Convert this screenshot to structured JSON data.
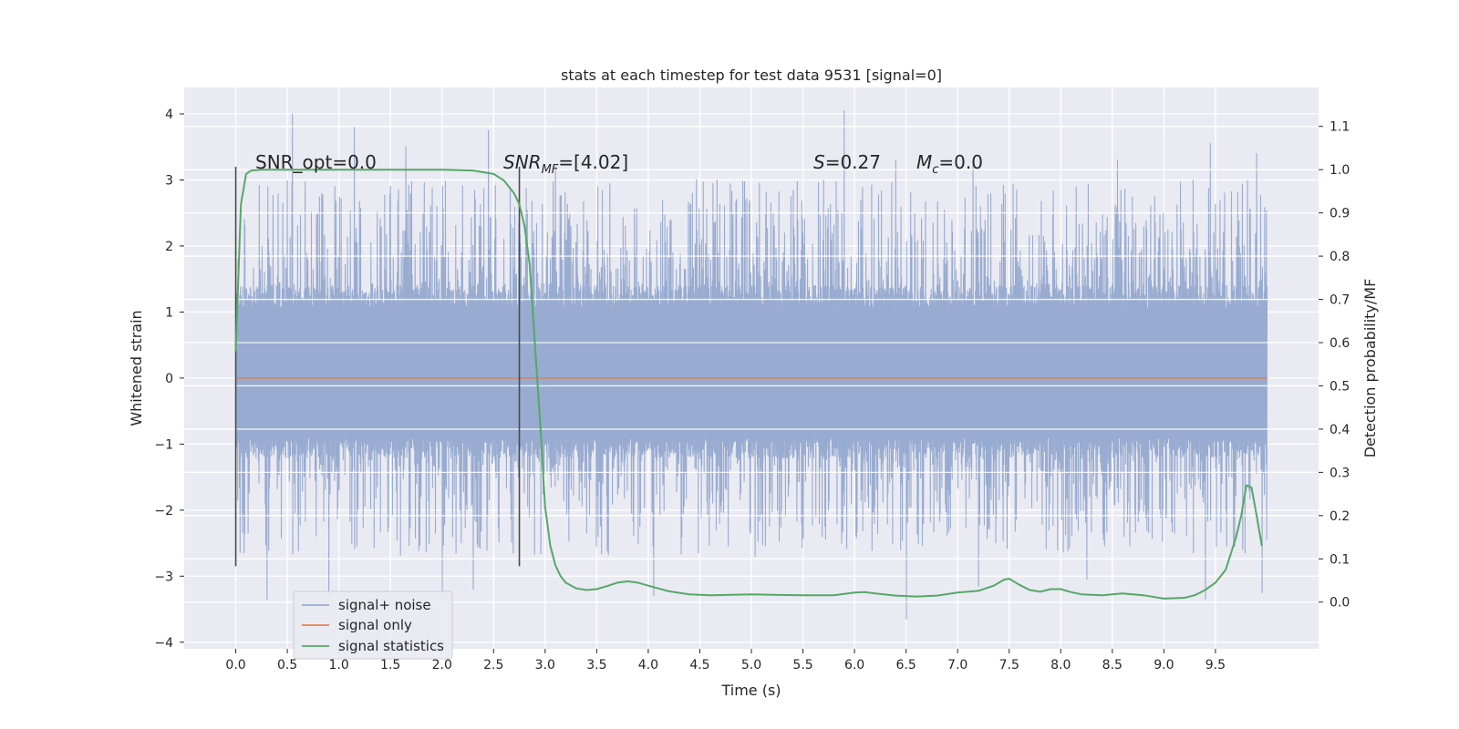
{
  "chart_data": {
    "type": "line",
    "title": "stats at each timestep for test data 9531 [signal=0]",
    "xlabel": "Time (s)",
    "ylabel": "Whitened strain",
    "y2label": "Detection probability/MF",
    "xlim": [
      -0.5,
      10.5
    ],
    "ylim": [
      -4.1,
      4.4
    ],
    "y2lim": [
      -0.108,
      1.19
    ],
    "x_ticks": [
      "0.0",
      "0.5",
      "1.0",
      "1.5",
      "2.0",
      "2.5",
      "3.0",
      "3.5",
      "4.0",
      "4.5",
      "5.0",
      "5.5",
      "6.0",
      "6.5",
      "7.0",
      "7.5",
      "8.0",
      "8.5",
      "9.0",
      "9.5"
    ],
    "y_ticks": [
      "4",
      "3",
      "2",
      "1",
      "0",
      "−1",
      "−2",
      "−3",
      "−4"
    ],
    "y2_ticks": [
      "1.1",
      "1.0",
      "0.9",
      "0.8",
      "0.7",
      "0.6",
      "0.5",
      "0.4",
      "0.3",
      "0.2",
      "0.1",
      "0.0"
    ],
    "grid": true,
    "legend_position": "lower-left",
    "annotations": {
      "snr_opt": "SNR_opt=0.0",
      "snr_mf_sym": "SNR",
      "snr_mf_sub": "MF",
      "snr_mf_val": "=[4.02]",
      "s_sym": "S",
      "s_val": "=0.27",
      "mc_sym": "M",
      "mc_sub": "c",
      "mc_val": "=0.0"
    },
    "vlines": [
      {
        "x": 0.0,
        "ymin": -2.85,
        "ymax": 3.2
      },
      {
        "x": 2.75,
        "ymin": -2.85,
        "ymax": 3.2
      }
    ],
    "series": [
      {
        "name": "signal+ noise",
        "color": "#98abd0",
        "axis": "left",
        "x_start": 0.0,
        "x_end": 10.0,
        "envelope": {
          "inner_min": -1.2,
          "inner_max": 1.4,
          "outer_min": -3.65,
          "outer_max": 4.05
        },
        "peaks": [
          [
            0.0,
            2.45
          ],
          [
            0.55,
            4.0
          ],
          [
            1.15,
            3.8
          ],
          [
            1.65,
            3.5
          ],
          [
            2.45,
            3.75
          ],
          [
            3.1,
            3.2
          ],
          [
            5.9,
            4.05
          ],
          [
            6.4,
            3.3
          ],
          [
            7.15,
            3.3
          ],
          [
            8.55,
            3.3
          ],
          [
            9.45,
            3.55
          ],
          [
            9.9,
            3.4
          ]
        ],
        "troughs": [
          [
            0.3,
            -3.35
          ],
          [
            0.9,
            -3.3
          ],
          [
            2.0,
            -3.35
          ],
          [
            2.3,
            -3.2
          ],
          [
            4.05,
            -3.3
          ],
          [
            6.5,
            -3.65
          ],
          [
            7.2,
            -3.15
          ],
          [
            8.25,
            -3.05
          ],
          [
            9.4,
            -3.35
          ],
          [
            9.95,
            -3.25
          ]
        ]
      },
      {
        "name": "signal only",
        "color": "#dd8452",
        "axis": "left",
        "x": [
          0.0,
          10.0
        ],
        "y": [
          0.0,
          0.0
        ]
      },
      {
        "name": "signal statistics",
        "color": "#55a868",
        "axis": "right",
        "x": [
          0.0,
          0.05,
          0.1,
          0.15,
          0.25,
          0.5,
          1.0,
          1.5,
          2.0,
          2.3,
          2.5,
          2.6,
          2.7,
          2.75,
          2.8,
          2.85,
          2.9,
          2.95,
          3.0,
          3.05,
          3.1,
          3.15,
          3.2,
          3.3,
          3.4,
          3.5,
          3.6,
          3.7,
          3.8,
          3.9,
          4.0,
          4.2,
          4.4,
          4.6,
          4.8,
          5.0,
          5.2,
          5.5,
          5.8,
          6.0,
          6.1,
          6.2,
          6.4,
          6.6,
          6.8,
          7.0,
          7.2,
          7.35,
          7.45,
          7.5,
          7.6,
          7.7,
          7.8,
          7.9,
          8.0,
          8.1,
          8.2,
          8.4,
          8.6,
          8.8,
          9.0,
          9.2,
          9.3,
          9.4,
          9.5,
          9.6,
          9.7,
          9.75,
          9.8,
          9.85,
          9.9,
          9.95
        ],
        "y": [
          0.58,
          0.92,
          0.99,
          0.998,
          1.0,
          1.0,
          1.0,
          1.0,
          1.0,
          0.998,
          0.99,
          0.975,
          0.945,
          0.92,
          0.87,
          0.78,
          0.6,
          0.42,
          0.22,
          0.13,
          0.085,
          0.06,
          0.045,
          0.032,
          0.028,
          0.03,
          0.037,
          0.045,
          0.048,
          0.045,
          0.038,
          0.025,
          0.018,
          0.016,
          0.017,
          0.018,
          0.017,
          0.016,
          0.016,
          0.022,
          0.023,
          0.02,
          0.015,
          0.013,
          0.015,
          0.022,
          0.026,
          0.038,
          0.052,
          0.054,
          0.04,
          0.028,
          0.024,
          0.03,
          0.03,
          0.023,
          0.018,
          0.016,
          0.02,
          0.016,
          0.008,
          0.01,
          0.016,
          0.028,
          0.045,
          0.075,
          0.15,
          0.2,
          0.27,
          0.265,
          0.2,
          0.13
        ]
      }
    ]
  }
}
